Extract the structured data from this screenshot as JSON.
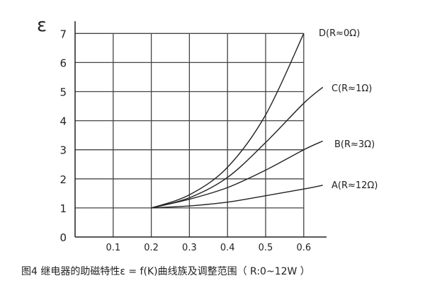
{
  "chart_data": {
    "type": "line",
    "title": "",
    "caption": "图4 继电器的助磁特性ε = f(K)曲线族及调整范围（ R:0~12W ）",
    "ylabel": "ε",
    "xlabel": "",
    "xlim": [
      0,
      0.66
    ],
    "ylim": [
      0,
      7
    ],
    "grid": true,
    "x_ticks": [
      "0.1",
      "0.2",
      "0.3",
      "0.4",
      "0.5",
      "0.6"
    ],
    "y_ticks": [
      "0",
      "1",
      "2",
      "3",
      "4",
      "5",
      "6",
      "7"
    ],
    "series": [
      {
        "name": "D(R≈0Ω)",
        "x": [
          0.2,
          0.3,
          0.4,
          0.5,
          0.6
        ],
        "y": [
          1,
          1.45,
          2.4,
          4.2,
          7.0
        ]
      },
      {
        "name": "C(R≈1Ω)",
        "x": [
          0.2,
          0.3,
          0.4,
          0.5,
          0.6,
          0.65
        ],
        "y": [
          1,
          1.35,
          2.05,
          3.25,
          4.6,
          5.15
        ]
      },
      {
        "name": "B(R≈3Ω)",
        "x": [
          0.2,
          0.3,
          0.4,
          0.5,
          0.6,
          0.65
        ],
        "y": [
          1,
          1.3,
          1.7,
          2.3,
          3.0,
          3.3
        ]
      },
      {
        "name": "A(R≈12Ω)",
        "x": [
          0.2,
          0.3,
          0.4,
          0.5,
          0.6,
          0.65
        ],
        "y": [
          1,
          1.07,
          1.2,
          1.42,
          1.65,
          1.78
        ]
      }
    ],
    "colors": {
      "line": "#222222",
      "grid": "#444444"
    }
  }
}
